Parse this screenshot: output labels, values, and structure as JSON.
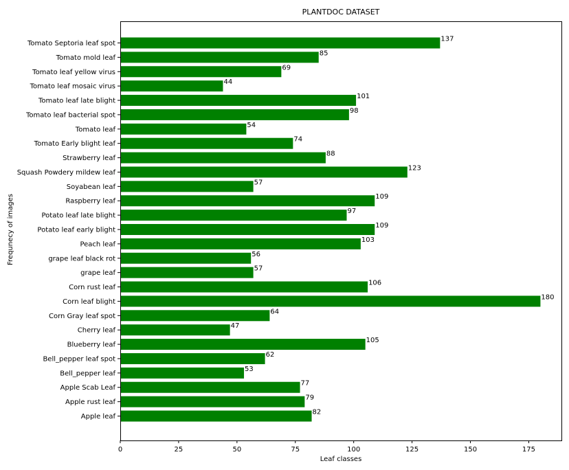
{
  "chart_data": {
    "type": "bar",
    "orientation": "horizontal",
    "title": "PLANTDOC DATASET",
    "xlabel": "Leaf classes",
    "ylabel": "Frequnecy of images",
    "xlim": [
      0,
      189
    ],
    "xticks": [
      0,
      25,
      50,
      75,
      100,
      125,
      150,
      175
    ],
    "bar_color": "#008000",
    "categories": [
      "Apple leaf",
      "Apple rust leaf",
      "Apple Scab Leaf",
      "Bell_pepper leaf",
      "Bell_pepper leaf spot",
      "Blueberry leaf",
      "Cherry leaf",
      "Corn Gray leaf spot",
      "Corn leaf blight",
      "Corn rust leaf",
      "grape leaf",
      "grape leaf black rot",
      "Peach leaf",
      "Potato leaf early blight",
      "Potato leaf late blight",
      "Raspberry leaf",
      "Soyabean leaf",
      "Squash Powdery mildew leaf",
      "Strawberry leaf",
      "Tomato Early blight leaf",
      "Tomato leaf",
      "Tomato leaf bacterial spot",
      "Tomato leaf late blight",
      "Tomato leaf mosaic virus",
      "Tomato leaf yellow virus",
      "Tomato mold leaf",
      "Tomato Septoria leaf spot"
    ],
    "values": [
      82,
      79,
      77,
      53,
      62,
      105,
      47,
      64,
      180,
      106,
      57,
      56,
      103,
      109,
      97,
      109,
      57,
      123,
      88,
      74,
      54,
      98,
      101,
      44,
      69,
      85,
      137
    ]
  }
}
